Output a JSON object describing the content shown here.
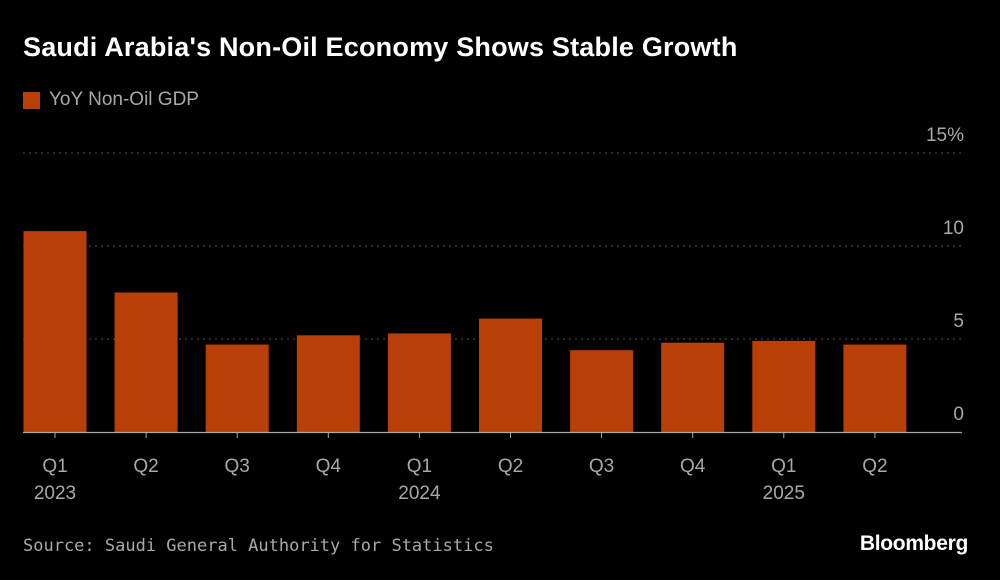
{
  "colors": {
    "bar": "#b84008",
    "background": "#000000",
    "muted": "#a8a8a8",
    "grid": "#555555"
  },
  "chart_data": {
    "type": "bar",
    "title": "Saudi Arabia's Non-Oil Economy Shows Stable Growth",
    "series": [
      {
        "name": "YoY Non-Oil GDP",
        "values": [
          10.8,
          7.5,
          4.7,
          5.2,
          5.3,
          6.1,
          4.4,
          4.8,
          4.9,
          4.7
        ]
      }
    ],
    "categories": [
      "Q1",
      "Q2",
      "Q3",
      "Q4",
      "Q1",
      "Q2",
      "Q3",
      "Q4",
      "Q1",
      "Q2"
    ],
    "year_labels": [
      {
        "category_index": 0,
        "label": "2023"
      },
      {
        "category_index": 4,
        "label": "2024"
      },
      {
        "category_index": 8,
        "label": "2025"
      }
    ],
    "yticks": [
      {
        "value": 0,
        "label": "0"
      },
      {
        "value": 5,
        "label": "5"
      },
      {
        "value": 10,
        "label": "10"
      },
      {
        "value": 15,
        "label": "15%"
      }
    ],
    "ylim": [
      0,
      15
    ],
    "xlabel": "",
    "ylabel": "",
    "grid": true,
    "legend_position": "top-left"
  },
  "footer": {
    "source": "Source: Saudi General Authority for Statistics",
    "brand": "Bloomberg"
  }
}
